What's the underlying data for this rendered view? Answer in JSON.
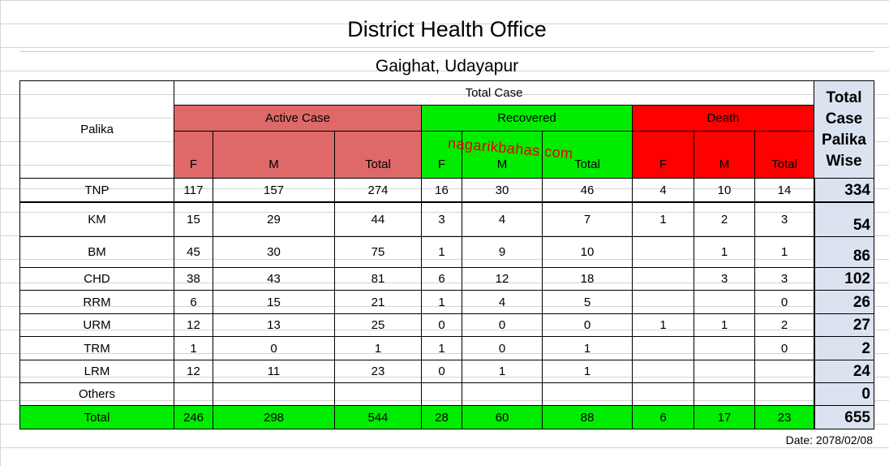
{
  "header": {
    "title": "District Health Office",
    "subtitle": "Gaighat, Udayapur"
  },
  "table": {
    "row_header": "Palika",
    "total_case_header": "Total Case",
    "groups": [
      "Active Case",
      "Recovered",
      "Death"
    ],
    "sub_headers": [
      "F",
      "M",
      "Total",
      "F",
      "M",
      "Total",
      "F",
      "M",
      "Total"
    ],
    "total_column_header": "Total Case Palika Wise",
    "rows": [
      {
        "label": "TNP",
        "cells": [
          117,
          157,
          274,
          16,
          30,
          46,
          4,
          10,
          14,
          334
        ]
      },
      {
        "label": "KM",
        "cells": [
          15,
          29,
          44,
          3,
          4,
          7,
          1,
          2,
          3,
          54
        ]
      },
      {
        "label": "BM",
        "cells": [
          45,
          30,
          75,
          1,
          9,
          10,
          null,
          1,
          1,
          86
        ]
      },
      {
        "label": "CHD",
        "cells": [
          38,
          43,
          81,
          6,
          12,
          18,
          null,
          3,
          3,
          102
        ]
      },
      {
        "label": "RRM",
        "cells": [
          6,
          15,
          21,
          1,
          4,
          5,
          null,
          null,
          0,
          26
        ]
      },
      {
        "label": "URM",
        "cells": [
          12,
          13,
          25,
          0,
          0,
          0,
          1,
          1,
          2,
          27
        ]
      },
      {
        "label": "TRM",
        "cells": [
          1,
          0,
          1,
          1,
          0,
          1,
          null,
          null,
          0,
          2
        ]
      },
      {
        "label": "LRM",
        "cells": [
          12,
          11,
          23,
          0,
          1,
          1,
          null,
          null,
          null,
          24
        ]
      },
      {
        "label": "Others",
        "cells": [
          null,
          null,
          null,
          null,
          null,
          null,
          null,
          null,
          null,
          0
        ]
      },
      {
        "label": "Total",
        "cells": [
          246,
          298,
          544,
          28,
          60,
          88,
          6,
          17,
          23,
          655
        ]
      }
    ]
  },
  "watermark": "nagarikbahas.com",
  "date": "Date: 2078/02/08"
}
